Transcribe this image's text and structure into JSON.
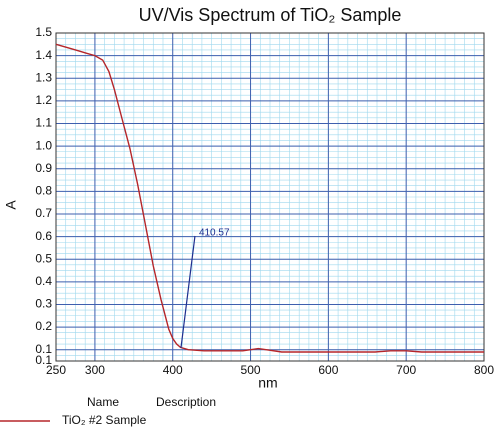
{
  "chart_data": {
    "type": "line",
    "title": "UV/Vis Spectrum of TiO₂ Sample",
    "xlabel": "nm",
    "ylabel": "A",
    "x": [
      250,
      260,
      270,
      280,
      290,
      300,
      310,
      318,
      325,
      335,
      345,
      355,
      365,
      375,
      385,
      395,
      400,
      405,
      410,
      420,
      440,
      490,
      500,
      510,
      520,
      540,
      600,
      660,
      680,
      700,
      720,
      800
    ],
    "series": [
      {
        "name": "TiO₂ #2 Sample",
        "color": "#b5262a",
        "values": [
          1.45,
          1.44,
          1.43,
          1.42,
          1.41,
          1.4,
          1.38,
          1.33,
          1.25,
          1.12,
          0.99,
          0.83,
          0.65,
          0.47,
          0.32,
          0.19,
          0.15,
          0.125,
          0.11,
          0.1,
          0.095,
          0.095,
          0.1,
          0.105,
          0.1,
          0.09,
          0.09,
          0.09,
          0.095,
          0.095,
          0.09,
          0.09
        ]
      }
    ],
    "xlim": [
      250,
      800
    ],
    "xticks": [
      250,
      300,
      400,
      500,
      600,
      700,
      800
    ],
    "ylim": [
      0.05,
      1.5
    ],
    "yticks": [
      {
        "value": 0.05,
        "label": "0.1"
      },
      0.1,
      0.2,
      0.3,
      0.4,
      0.5,
      0.6,
      0.7,
      0.8,
      0.9,
      {
        "value": 1,
        "label": "1.0"
      },
      1.1,
      1.2,
      1.3,
      1.4,
      1.5
    ],
    "grid": true,
    "annotation": {
      "text": "410.57",
      "x": 410.57
    },
    "legend_headers": [
      "Name",
      "Description"
    ]
  }
}
